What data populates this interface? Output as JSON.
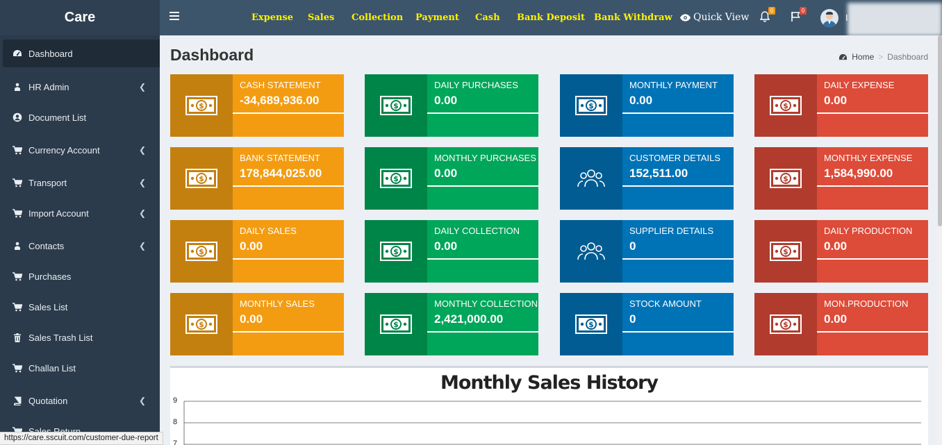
{
  "app": {
    "logo": "Care"
  },
  "topnav": [
    "Expense",
    "Sales",
    "Collection",
    "Payment",
    "Cash",
    "Bank Deposit",
    "Bank Withdraw"
  ],
  "header": {
    "quick_view": "Quick View",
    "notif_count": "0",
    "flag_count": "0",
    "user_initial": "I"
  },
  "sidebar": {
    "items": [
      {
        "label": "Dashboard",
        "icon": "dashboard-icon",
        "has_children": false
      },
      {
        "label": "HR Admin",
        "icon": "sitemap-icon",
        "has_children": true
      },
      {
        "label": "Document List",
        "icon": "user-circle-icon",
        "has_children": false
      },
      {
        "label": "Currency Account",
        "icon": "cart-icon",
        "has_children": true
      },
      {
        "label": "Transport",
        "icon": "cart-icon",
        "has_children": true
      },
      {
        "label": "Import Account",
        "icon": "cart-icon",
        "has_children": true
      },
      {
        "label": "Contacts",
        "icon": "sitemap-icon",
        "has_children": true
      },
      {
        "label": "Purchases",
        "icon": "cart-icon",
        "has_children": false
      },
      {
        "label": "Sales List",
        "icon": "cart-icon",
        "has_children": false
      },
      {
        "label": "Sales Trash List",
        "icon": "trash-icon",
        "has_children": false
      },
      {
        "label": "Challan List",
        "icon": "cart-icon",
        "has_children": false
      },
      {
        "label": "Quotation",
        "icon": "book-icon",
        "has_children": true
      },
      {
        "label": "Sales Return",
        "icon": "cart-icon",
        "has_children": false
      }
    ]
  },
  "status_url": "https://care.sscuit.com/customer-due-report",
  "page": {
    "title": "Dashboard",
    "breadcrumb": [
      "Home",
      "Dashboard"
    ]
  },
  "boxes": [
    {
      "label": "CASH STATEMENT",
      "value": "-34,689,936.00",
      "color": "orange",
      "icon": "money-icon"
    },
    {
      "label": "DAILY PURCHASES",
      "value": "0.00",
      "color": "green",
      "icon": "money-icon"
    },
    {
      "label": "MONTHLY PAYMENT",
      "value": "0.00",
      "color": "blue",
      "icon": "money-icon"
    },
    {
      "label": "DAILY EXPENSE",
      "value": "0.00",
      "color": "red",
      "icon": "money-icon"
    },
    {
      "label": "BANK STATEMENT",
      "value": "178,844,025.00",
      "color": "orange",
      "icon": "money-icon"
    },
    {
      "label": "MONTHLY PURCHASES",
      "value": "0.00",
      "color": "green",
      "icon": "money-icon"
    },
    {
      "label": "CUSTOMER DETAILS",
      "value": "152,511.00",
      "color": "blue",
      "icon": "users-icon"
    },
    {
      "label": "MONTHLY EXPENSE",
      "value": "1,584,990.00",
      "color": "red",
      "icon": "money-icon"
    },
    {
      "label": "DAILY SALES",
      "value": "0.00",
      "color": "orange",
      "icon": "money-icon"
    },
    {
      "label": "DAILY COLLECTION",
      "value": "0.00",
      "color": "green",
      "icon": "money-icon"
    },
    {
      "label": "SUPPLIER DETAILS",
      "value": "0",
      "color": "blue",
      "icon": "users-icon"
    },
    {
      "label": "DAILY PRODUCTION",
      "value": "0.00",
      "color": "red",
      "icon": "money-icon"
    },
    {
      "label": "MONTHLY SALES",
      "value": "0.00",
      "color": "orange",
      "icon": "money-icon"
    },
    {
      "label": "MONTHLY COLLECTION",
      "value": "2,421,000.00",
      "color": "green",
      "icon": "money-icon"
    },
    {
      "label": "STOCK AMOUNT",
      "value": "0",
      "color": "blue",
      "icon": "money-icon"
    },
    {
      "label": "MON.PRODUCTION",
      "value": "0.00",
      "color": "red",
      "icon": "money-icon"
    }
  ],
  "chart": {
    "title": "Monthly Sales History",
    "y_ticks": [
      "9",
      "8",
      "7"
    ]
  },
  "colors": {
    "orange": "#f39c12",
    "green": "#00a65a",
    "blue": "#0073b7",
    "red": "#dd4b39",
    "sidebar": "#2c3b4b",
    "header": "#3c556b",
    "nav_link": "#fff200"
  }
}
